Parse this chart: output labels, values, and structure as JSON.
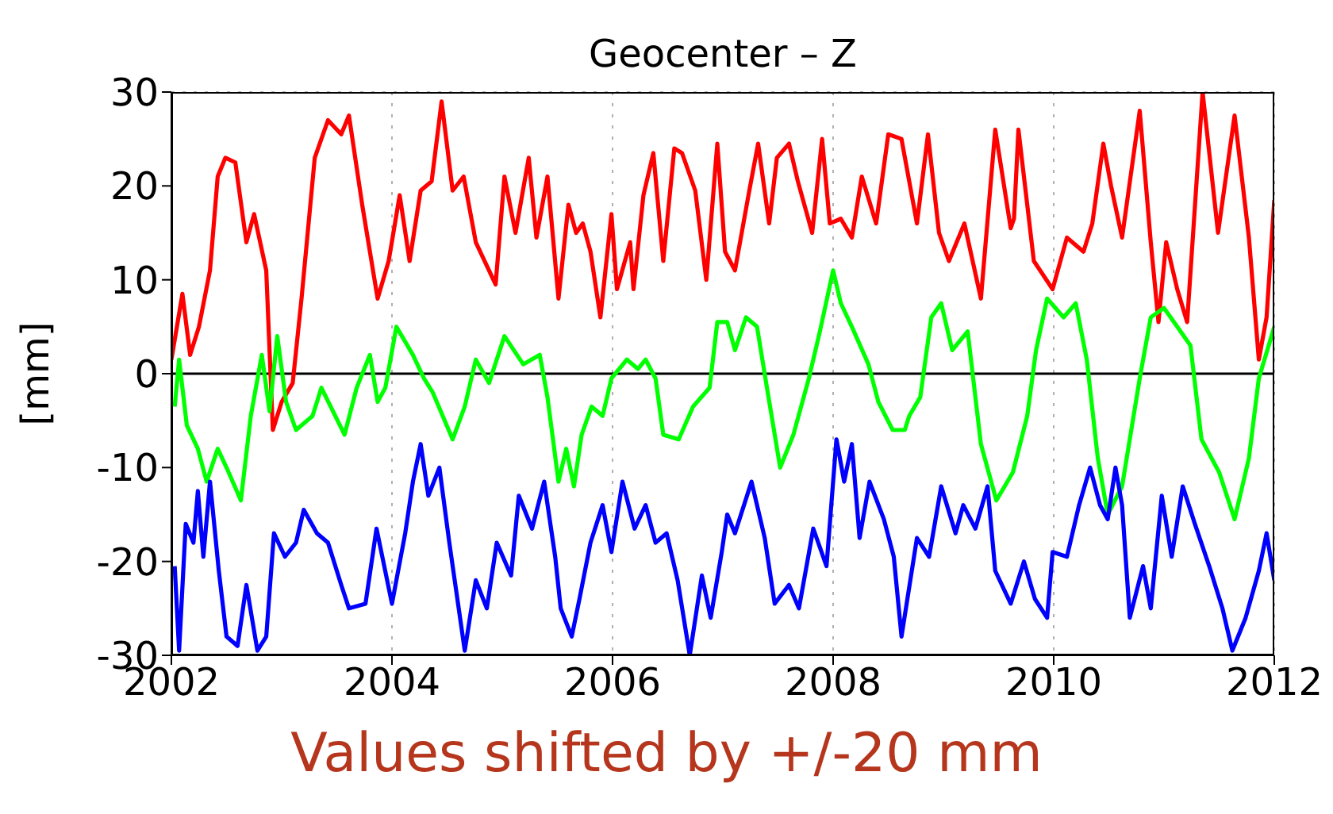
{
  "chart_data": {
    "type": "line",
    "title": "Geocenter – Z",
    "ylabel": "[mm]",
    "annotations": [
      "Values shifted by +/-20 mm"
    ],
    "xlim": [
      2002,
      2012
    ],
    "xticks": [
      2002,
      2004,
      2006,
      2008,
      2010,
      2012
    ],
    "ylim": [
      -30,
      30
    ],
    "yticks": [
      -30,
      -20,
      -10,
      0,
      10,
      20,
      30
    ],
    "grid": true,
    "marker": "none",
    "line_style": "solid",
    "ref_lines": [
      {
        "axis": "y",
        "value": 0,
        "color": "#000000"
      }
    ],
    "series": [
      {
        "color": "#ff0000",
        "x": [
          2002.0,
          2002.1,
          2002.17,
          2002.25,
          2002.35,
          2002.42,
          2002.49,
          2002.58,
          2002.68,
          2002.75,
          2002.86,
          2002.92,
          2003.0,
          2003.1,
          2003.18,
          2003.3,
          2003.42,
          2003.54,
          2003.61,
          2003.73,
          2003.87,
          2003.97,
          2004.07,
          2004.16,
          2004.26,
          2004.36,
          2004.45,
          2004.55,
          2004.65,
          2004.76,
          2004.94,
          2005.02,
          2005.12,
          2005.24,
          2005.31,
          2005.41,
          2005.51,
          2005.6,
          2005.67,
          2005.73,
          2005.8,
          2005.89,
          2005.99,
          2006.04,
          2006.16,
          2006.19,
          2006.28,
          2006.37,
          2006.46,
          2006.56,
          2006.63,
          2006.75,
          2006.85,
          2006.95,
          2007.02,
          2007.11,
          2007.24,
          2007.32,
          2007.42,
          2007.49,
          2007.6,
          2007.68,
          2007.81,
          2007.9,
          2007.97,
          2008.07,
          2008.17,
          2008.26,
          2008.39,
          2008.5,
          2008.62,
          2008.76,
          2008.86,
          2008.96,
          2009.05,
          2009.19,
          2009.34,
          2009.47,
          2009.61,
          2009.64,
          2009.68,
          2009.82,
          2009.99,
          2010.12,
          2010.27,
          2010.35,
          2010.45,
          2010.52,
          2010.62,
          2010.78,
          2010.88,
          2010.95,
          2011.02,
          2011.12,
          2011.21,
          2011.35,
          2011.49,
          2011.64,
          2011.77,
          2011.86,
          2011.93,
          2012.0
        ],
        "values": [
          1.5,
          8.5,
          2,
          5,
          11,
          21,
          23,
          22.5,
          14,
          17,
          11,
          -6,
          -3,
          -1,
          8,
          23,
          27,
          25.5,
          27.5,
          18,
          8,
          12,
          19,
          12,
          19.5,
          20.5,
          29,
          19.5,
          21,
          14,
          9.5,
          21,
          15,
          23,
          14.5,
          21,
          8,
          18,
          15,
          16,
          13,
          6,
          17,
          9,
          14,
          9,
          19,
          23.5,
          12,
          24,
          23.5,
          19.5,
          10,
          24.5,
          13,
          11,
          19.5,
          24.5,
          16,
          23,
          24.5,
          20.5,
          15,
          25,
          16,
          16.5,
          14.5,
          21,
          16,
          25.5,
          25,
          16,
          25.5,
          15,
          12,
          16,
          8,
          26,
          15.5,
          16.5,
          26,
          12,
          9,
          14.5,
          13,
          16,
          24.5,
          20,
          14.5,
          28,
          14,
          5.5,
          14,
          9,
          5.5,
          30,
          15,
          27.5,
          14.5,
          1.5,
          6,
          18.5
        ]
      },
      {
        "color": "#00ff00",
        "x": [
          2002.03,
          2002.07,
          2002.14,
          2002.24,
          2002.32,
          2002.42,
          2002.5,
          2002.63,
          2002.72,
          2002.82,
          2002.89,
          2002.96,
          2003.04,
          2003.13,
          2003.28,
          2003.36,
          2003.57,
          2003.68,
          2003.8,
          2003.87,
          2003.94,
          2004.04,
          2004.19,
          2004.29,
          2004.37,
          2004.55,
          2004.66,
          2004.76,
          2004.88,
          2005.02,
          2005.19,
          2005.34,
          2005.41,
          2005.51,
          2005.58,
          2005.65,
          2005.72,
          2005.81,
          2005.91,
          2005.99,
          2006.13,
          2006.23,
          2006.3,
          2006.39,
          2006.46,
          2006.6,
          2006.73,
          2006.88,
          2006.95,
          2007.04,
          2007.11,
          2007.21,
          2007.31,
          2007.4,
          2007.52,
          2007.64,
          2007.78,
          2007.88,
          2008.0,
          2008.07,
          2008.17,
          2008.32,
          2008.41,
          2008.54,
          2008.6,
          2008.65,
          2008.69,
          2008.79,
          2008.89,
          2008.98,
          2009.08,
          2009.22,
          2009.34,
          2009.48,
          2009.63,
          2009.76,
          2009.84,
          2009.94,
          2010.09,
          2010.2,
          2010.3,
          2010.4,
          2010.49,
          2010.62,
          2010.78,
          2010.88,
          2011.0,
          2011.12,
          2011.24,
          2011.34,
          2011.5,
          2011.64,
          2011.77,
          2011.86,
          2012.0
        ],
        "values": [
          -3.5,
          1.5,
          -5.5,
          -8,
          -11.5,
          -8,
          -10,
          -13.5,
          -4.5,
          2,
          -4,
          4,
          -3,
          -6,
          -4.5,
          -1.5,
          -6.5,
          -1.5,
          2,
          -3,
          -1.5,
          5,
          2,
          -0.5,
          -2,
          -7,
          -3.5,
          1.5,
          -1,
          4,
          1,
          2,
          -2.5,
          -11.5,
          -8,
          -12,
          -6.5,
          -3.5,
          -4.5,
          -0.5,
          1.5,
          0.5,
          1.5,
          -0.5,
          -6.5,
          -7,
          -3.5,
          -1.5,
          5.5,
          5.5,
          2.5,
          6,
          5,
          -1.5,
          -10,
          -6.5,
          -0.5,
          4.5,
          11,
          7.5,
          5,
          1,
          -3,
          -6,
          -6,
          -6,
          -4.5,
          -2.5,
          6,
          7.5,
          2.5,
          4.5,
          -7.5,
          -13.5,
          -10.5,
          -4.5,
          2.5,
          8,
          6,
          7.5,
          1.5,
          -9,
          -15,
          -12,
          -0.5,
          6,
          7,
          5,
          3,
          -7,
          -10.5,
          -15.5,
          -9,
          -0.5,
          5
        ]
      },
      {
        "color": "#0000ff",
        "x": [
          2002.03,
          2002.07,
          2002.13,
          2002.2,
          2002.24,
          2002.29,
          2002.35,
          2002.43,
          2002.5,
          2002.6,
          2002.68,
          2002.78,
          2002.86,
          2002.93,
          2003.03,
          2003.13,
          2003.2,
          2003.32,
          2003.42,
          2003.54,
          2003.61,
          2003.76,
          2003.86,
          2004.0,
          2004.12,
          2004.19,
          2004.26,
          2004.33,
          2004.43,
          2004.52,
          2004.66,
          2004.76,
          2004.86,
          2004.95,
          2005.08,
          2005.15,
          2005.27,
          2005.38,
          2005.48,
          2005.53,
          2005.63,
          2005.7,
          2005.8,
          2005.91,
          2005.99,
          2006.09,
          2006.2,
          2006.3,
          2006.39,
          2006.49,
          2006.59,
          2006.7,
          2006.81,
          2006.89,
          2006.99,
          2007.04,
          2007.11,
          2007.26,
          2007.38,
          2007.47,
          2007.6,
          2007.69,
          2007.82,
          2007.94,
          2008.03,
          2008.1,
          2008.17,
          2008.24,
          2008.33,
          2008.46,
          2008.55,
          2008.62,
          2008.76,
          2008.87,
          2008.98,
          2009.11,
          2009.18,
          2009.29,
          2009.4,
          2009.47,
          2009.61,
          2009.73,
          2009.83,
          2009.94,
          2009.99,
          2010.12,
          2010.23,
          2010.33,
          2010.42,
          2010.49,
          2010.56,
          2010.62,
          2010.69,
          2010.81,
          2010.88,
          2010.98,
          2011.07,
          2011.17,
          2011.28,
          2011.41,
          2011.53,
          2011.62,
          2011.74,
          2011.86,
          2011.93,
          2012.0
        ],
        "values": [
          -20.5,
          -29.5,
          -16,
          -18,
          -12.5,
          -19.5,
          -11.5,
          -21,
          -28,
          -29,
          -22.5,
          -29.5,
          -28,
          -17,
          -19.5,
          -18,
          -14.5,
          -17,
          -18,
          -22.5,
          -25,
          -24.5,
          -16.5,
          -24.5,
          -17,
          -11.5,
          -7.5,
          -13,
          -10,
          -18,
          -29.5,
          -22,
          -25,
          -18,
          -21.5,
          -13,
          -16.5,
          -11.5,
          -19.5,
          -25,
          -28,
          -24,
          -18,
          -14,
          -19,
          -11.5,
          -16.5,
          -14,
          -18,
          -17,
          -22,
          -30,
          -21.5,
          -26,
          -19,
          -15,
          -17,
          -11.5,
          -17.5,
          -24.5,
          -22.5,
          -25,
          -16.5,
          -20.5,
          -7,
          -11.5,
          -7.5,
          -17.5,
          -11.5,
          -15.5,
          -19.5,
          -28,
          -17.5,
          -19.5,
          -12,
          -17,
          -14,
          -16.5,
          -12,
          -21,
          -24.5,
          -20,
          -24,
          -26,
          -19,
          -19.5,
          -14,
          -10,
          -14,
          -15.5,
          -10,
          -14,
          -26,
          -20.5,
          -25,
          -13,
          -19.5,
          -12,
          -16,
          -20.5,
          -25,
          -29.5,
          -26,
          -21,
          -17,
          -22
        ]
      }
    ]
  }
}
